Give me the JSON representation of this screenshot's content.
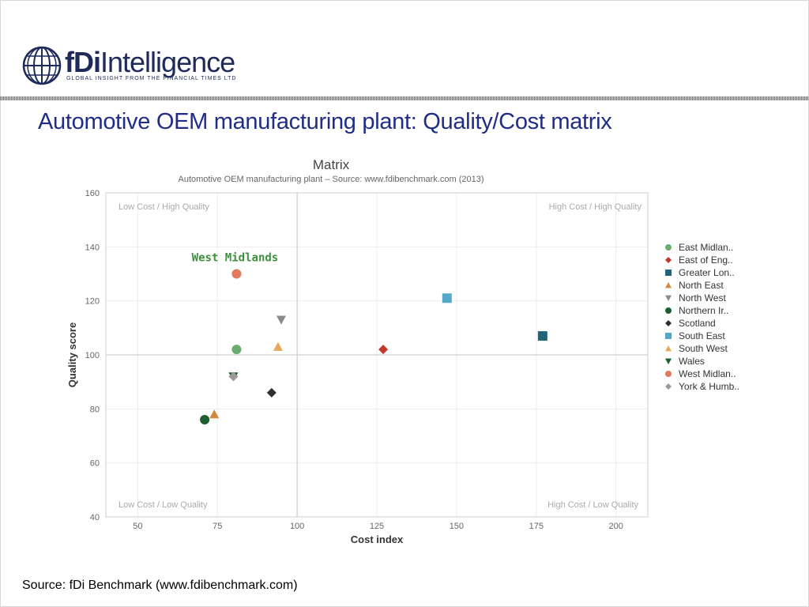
{
  "slide": {
    "title": "Automotive OEM manufacturing plant: Quality/Cost matrix",
    "source": "Source: fDi Benchmark (www.fdibenchmark.com)"
  },
  "logo": {
    "brand_bold": "fDi",
    "brand_regular": "Intelligence",
    "tagline": "GLOBAL INSIGHT FROM THE FINANCIAL TIMES LTD",
    "icon": "globe-icon"
  },
  "chart_data": {
    "type": "scatter",
    "title": "Matrix",
    "subtitle": "Automotive OEM manufacturing plant – Source: www.fdibenchmark.com (2013)",
    "xlabel": "Cost index",
    "ylabel": "Quality score",
    "xlim": [
      40,
      210
    ],
    "ylim": [
      40,
      160
    ],
    "xticks": [
      50,
      75,
      100,
      125,
      150,
      175,
      200
    ],
    "yticks": [
      40,
      60,
      80,
      100,
      120,
      140,
      160
    ],
    "grid": true,
    "quadrant_lines": {
      "x": 100,
      "y": 100
    },
    "quadrant_labels": {
      "top_left": "Low Cost / High Quality",
      "top_right": "High Cost / High Quality",
      "bottom_left": "Low Cost / Low Quality",
      "bottom_right": "High Cost / Low Quality"
    },
    "highlight": {
      "label": "West Midlands",
      "color": "#3f8f3f"
    },
    "legend_position": "right",
    "series": [
      {
        "name": "East Midlan..",
        "marker": "circle",
        "color": "#6aae6f",
        "x": 81,
        "y": 102
      },
      {
        "name": "East of Eng..",
        "marker": "diamond",
        "color": "#c0392b",
        "x": 127,
        "y": 102
      },
      {
        "name": "Greater Lon..",
        "marker": "square",
        "color": "#1f6478",
        "x": 177,
        "y": 107
      },
      {
        "name": "North East",
        "marker": "triangle-up",
        "color": "#d4883a",
        "x": 74,
        "y": 78
      },
      {
        "name": "North West",
        "marker": "triangle-down",
        "color": "#8a8a8a",
        "x": 95,
        "y": 113
      },
      {
        "name": "Northern Ir..",
        "marker": "circle",
        "color": "#1e5e2e",
        "x": 71,
        "y": 76
      },
      {
        "name": "Scotland",
        "marker": "diamond",
        "color": "#2f2f2f",
        "x": 92,
        "y": 86
      },
      {
        "name": "South East",
        "marker": "square",
        "color": "#56a8c8",
        "x": 147,
        "y": 121
      },
      {
        "name": "South West",
        "marker": "triangle-up",
        "color": "#e6a85a",
        "x": 94,
        "y": 103
      },
      {
        "name": "Wales",
        "marker": "triangle-down",
        "color": "#1e5e2e",
        "x": 80,
        "y": 92
      },
      {
        "name": "West Midlan..",
        "marker": "circle",
        "color": "#e07a5f",
        "x": 81,
        "y": 130
      },
      {
        "name": "York & Humb..",
        "marker": "diamond",
        "color": "#9a9a9a",
        "x": 80,
        "y": 92
      }
    ]
  }
}
